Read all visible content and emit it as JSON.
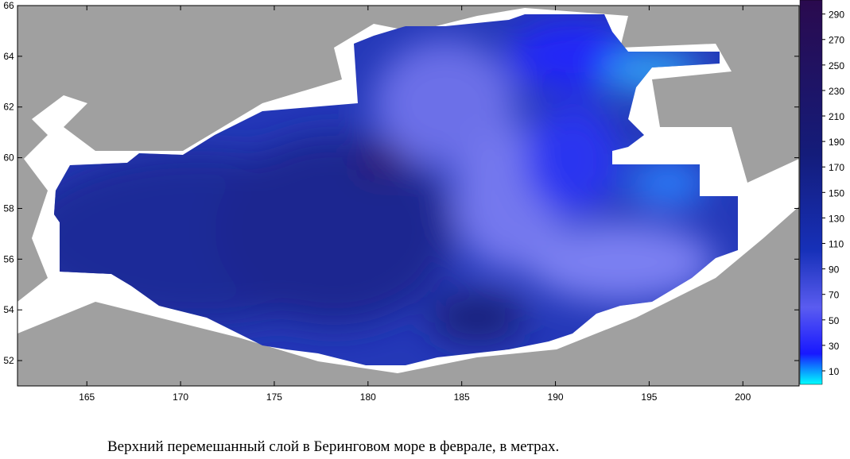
{
  "map": {
    "caption": "Верхний перемешанный слой в Беринговом море в феврале, в метрах.",
    "xlim": [
      161.3,
      203
    ],
    "ylim": [
      51,
      66
    ],
    "xticks": [
      165,
      170,
      175,
      180,
      185,
      190,
      195,
      200
    ],
    "yticks": [
      52,
      54,
      56,
      58,
      60,
      62,
      64,
      66
    ],
    "colorbar": {
      "lim": [
        -0.6,
        301
      ],
      "ticks": [
        10,
        30,
        50,
        70,
        90,
        110,
        130,
        150,
        170,
        190,
        210,
        230,
        250,
        270,
        290
      ]
    }
  }
}
